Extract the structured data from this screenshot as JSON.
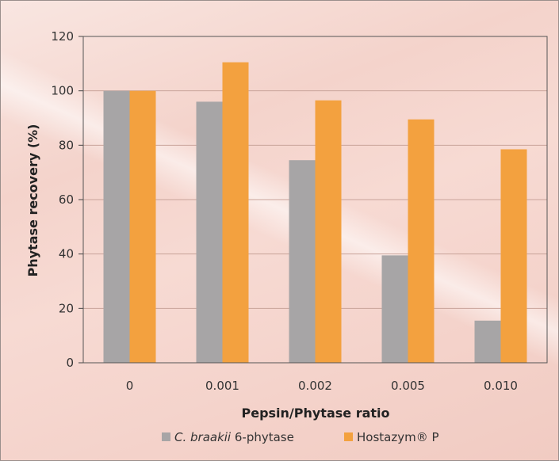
{
  "chart_data": {
    "type": "bar",
    "categories": [
      "0",
      "0.001",
      "0.002",
      "0.005",
      "0.010"
    ],
    "series": [
      {
        "name_italic": "C. braakii",
        "name_rest": " 6-phytase",
        "values": [
          100,
          96,
          74.5,
          39.5,
          15.5
        ],
        "color": "#a7a5a6"
      },
      {
        "name_italic": "",
        "name_rest": "Hostazym® P",
        "values": [
          100,
          110.5,
          96.5,
          89.5,
          78.5
        ],
        "color": "#f3a13f"
      }
    ],
    "xlabel": "Pepsin/Phytase ratio",
    "ylabel": "Phytase recovery (%)",
    "ylim": [
      0,
      120
    ],
    "yticks": [
      0,
      20,
      40,
      60,
      80,
      100,
      120
    ],
    "grid": true,
    "legend": "bottom"
  }
}
